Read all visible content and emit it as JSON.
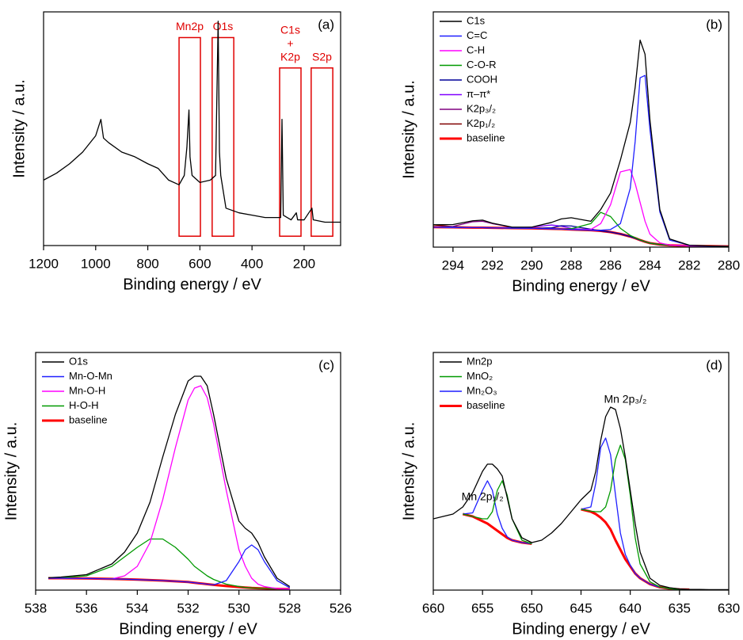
{
  "chart_data": [
    {
      "type": "line",
      "panel_label": "(a)",
      "xlabel": "Binding energy / eV",
      "ylabel": "Intensity / a.u.",
      "xlim": [
        1200,
        60
      ],
      "xticks": [
        1200,
        1000,
        800,
        600,
        400,
        200
      ],
      "ylim": [
        0,
        100
      ],
      "color": "#000000",
      "x": [
        1200,
        1150,
        1100,
        1050,
        1000,
        980,
        970,
        950,
        900,
        850,
        800,
        760,
        720,
        680,
        660,
        650,
        642,
        638,
        630,
        600,
        560,
        540,
        530,
        525,
        520,
        500,
        450,
        400,
        350,
        300,
        290,
        285,
        280,
        250,
        230,
        225,
        200,
        170,
        165,
        120,
        60
      ],
      "values": [
        28,
        31,
        35,
        40,
        47,
        54,
        46,
        44,
        40,
        38,
        35,
        33,
        28,
        26,
        30,
        42,
        58,
        38,
        30,
        27,
        28,
        30,
        96,
        40,
        30,
        16,
        14,
        13,
        12,
        12,
        12,
        54,
        13,
        11,
        14,
        11,
        11,
        16,
        11,
        10,
        10
      ],
      "regions": [
        {
          "label": [
            "Mn2p"
          ],
          "x": [
            680,
            598
          ],
          "y": [
            4,
            89
          ],
          "color": "#e00000"
        },
        {
          "label": [
            "O1s"
          ],
          "x": [
            553,
            470
          ],
          "y": [
            4,
            89
          ],
          "color": "#e00000"
        },
        {
          "label": [
            "C1s",
            "+",
            "K2p"
          ],
          "x": [
            294,
            212
          ],
          "y": [
            4,
            76
          ],
          "color": "#e00000"
        },
        {
          "label": [
            "S2p"
          ],
          "x": [
            173,
            90
          ],
          "y": [
            4,
            76
          ],
          "color": "#e00000"
        }
      ]
    },
    {
      "type": "line",
      "panel_label": "(b)",
      "xlabel": "Binding energy / eV",
      "ylabel": "Intensity / a.u.",
      "xlim": [
        295,
        280
      ],
      "xticks": [
        294,
        292,
        290,
        288,
        286,
        284,
        282,
        280
      ],
      "ylim": [
        0,
        100
      ],
      "legend": "upper left",
      "x": [
        295,
        294,
        293,
        292.5,
        292,
        291,
        290,
        289,
        288.5,
        288,
        287,
        286.5,
        286,
        285.5,
        285,
        284.75,
        284.5,
        284.25,
        284,
        283.5,
        283,
        282,
        281,
        280
      ],
      "series": [
        {
          "name": "C1s",
          "color": "#000000",
          "values": [
            9.5,
            9.6,
            11.2,
            11.5,
            10.2,
            8.5,
            8.5,
            10.5,
            12,
            12.5,
            11,
            16,
            23,
            37,
            53,
            68,
            88,
            82,
            54,
            16,
            3.5,
            0.8,
            0.5,
            0.3
          ]
        },
        {
          "name": "C=C",
          "color": "#1f1fff",
          "values": [
            8.5,
            8.4,
            8.3,
            8.3,
            8.2,
            8.1,
            8,
            7.8,
            7.7,
            7.5,
            7.2,
            7.2,
            7.5,
            10,
            25,
            45,
            72,
            73,
            50,
            15,
            3,
            0.8,
            0.4,
            0.3
          ]
        },
        {
          "name": "C-H",
          "color": "#ff00ff",
          "values": [
            8.5,
            8.4,
            8.3,
            8.3,
            8.2,
            8.1,
            8,
            7.8,
            7.7,
            7.5,
            7.5,
            10,
            18,
            32,
            33,
            27,
            19,
            11,
            5.5,
            1.8,
            0.9,
            0.5,
            0.4,
            0.3
          ]
        },
        {
          "name": "C-O-R",
          "color": "#009900",
          "values": [
            8.5,
            8.4,
            8.3,
            8.3,
            8.2,
            8.1,
            8,
            7.8,
            7.7,
            7.8,
            10,
            14.8,
            13,
            8,
            5,
            4,
            3.1,
            2.3,
            1.7,
            1.1,
            0.8,
            0.5,
            0.4,
            0.3
          ]
        },
        {
          "name": "COOH",
          "color": "#000099",
          "values": [
            8.5,
            8.4,
            8.3,
            8.3,
            8.2,
            8.1,
            8,
            8.2,
            9.1,
            9,
            7.6,
            6.9,
            6.4,
            5.6,
            4.5,
            3.8,
            3,
            2.3,
            1.7,
            1.1,
            0.8,
            0.5,
            0.4,
            0.3
          ]
        },
        {
          "name": "π–π*",
          "color": "#8000ff",
          "values": [
            8.5,
            8.4,
            8.3,
            8.3,
            8.2,
            8.1,
            8.5,
            9.4,
            8.9,
            8,
            7.2,
            6.9,
            6.4,
            5.6,
            4.5,
            3.8,
            3,
            2.3,
            1.7,
            1.1,
            0.8,
            0.5,
            0.4,
            0.3
          ]
        },
        {
          "name": "K2p₃/₂",
          "color": "#800080",
          "values": [
            8.5,
            8.8,
            10.8,
            11,
            10,
            8.4,
            8,
            7.8,
            7.7,
            7.5,
            7.2,
            6.9,
            6.4,
            5.6,
            4.5,
            3.8,
            3,
            2.3,
            1.7,
            1.1,
            0.8,
            0.5,
            0.4,
            0.3
          ]
        },
        {
          "name": "K2p₁/₂",
          "color": "#800000",
          "values": [
            9.5,
            8.7,
            8.3,
            8.3,
            8.2,
            8.1,
            8,
            7.8,
            7.7,
            7.5,
            7.2,
            6.9,
            6.4,
            5.6,
            4.5,
            3.8,
            3,
            2.3,
            1.7,
            1.1,
            0.8,
            0.5,
            0.4,
            0.3
          ]
        },
        {
          "name": "baseline",
          "color": "#ff0000",
          "linewidth": 3,
          "values": [
            8.5,
            8.4,
            8.3,
            8.3,
            8.2,
            8.1,
            8,
            7.8,
            7.7,
            7.5,
            7.2,
            6.9,
            6.4,
            5.6,
            4.5,
            3.8,
            3,
            2.3,
            1.7,
            1.1,
            0.8,
            0.5,
            0.4,
            0.3
          ]
        }
      ]
    },
    {
      "type": "line",
      "panel_label": "(c)",
      "xlabel": "Binding energy / eV",
      "ylabel": "Intensity / a.u.",
      "xlim": [
        538,
        526
      ],
      "xticks": [
        538,
        536,
        534,
        532,
        530,
        528,
        526
      ],
      "ylim": [
        0,
        100
      ],
      "legend": "upper left",
      "x": [
        537.5,
        537,
        536,
        535,
        534.5,
        534,
        533.5,
        533,
        532.5,
        532,
        531.75,
        531.5,
        531.25,
        531,
        530.5,
        530,
        529.75,
        529.5,
        529.25,
        529,
        528.5,
        528
      ],
      "series": [
        {
          "name": "O1s",
          "color": "#000000",
          "values": [
            5.2,
            5.5,
            6.5,
            11,
            16,
            24,
            37,
            56,
            74,
            88,
            90,
            90,
            86,
            74,
            47,
            29,
            26,
            24,
            20,
            14,
            5,
            1.5
          ]
        },
        {
          "name": "Mn-O-Mn",
          "color": "#1f1fff",
          "values": [
            5,
            5,
            4.9,
            4.7,
            4.6,
            4.4,
            4.2,
            4,
            3.7,
            3.4,
            3.1,
            2.8,
            2.5,
            2.2,
            4,
            12,
            17,
            19,
            17,
            12,
            4,
            1
          ]
        },
        {
          "name": "Mn-O-H",
          "color": "#ff00ff",
          "values": [
            5,
            5,
            4.9,
            4.7,
            6,
            10,
            20,
            38,
            60,
            80,
            85,
            86,
            81,
            70,
            42,
            17,
            10,
            5,
            2.5,
            1.5,
            0.6,
            0.4
          ]
        },
        {
          "name": "H-O-H",
          "color": "#009900",
          "values": [
            5,
            5.2,
            6,
            10,
            14,
            18,
            21.5,
            21.5,
            18,
            13,
            10,
            8,
            6,
            4.5,
            2.5,
            1.5,
            1.1,
            0.9,
            0.8,
            0.7,
            0.5,
            0.4
          ]
        },
        {
          "name": "baseline",
          "color": "#ff0000",
          "linewidth": 3,
          "values": [
            5,
            5,
            4.9,
            4.7,
            4.6,
            4.4,
            4.2,
            4,
            3.7,
            3.4,
            3.1,
            2.8,
            2.5,
            2.2,
            1.7,
            1.3,
            1.1,
            0.9,
            0.8,
            0.7,
            0.5,
            0.4
          ]
        }
      ]
    },
    {
      "type": "line",
      "panel_label": "(d)",
      "xlabel": "Binding energy / eV",
      "ylabel": "Intensity / a.u.",
      "xlim": [
        660,
        630
      ],
      "xticks": [
        660,
        655,
        650,
        645,
        640,
        635,
        630
      ],
      "ylim": [
        0,
        100
      ],
      "legend": "upper left",
      "x": [
        660,
        659,
        658,
        657,
        656,
        655,
        654.5,
        654,
        653.5,
        653,
        652.5,
        652,
        651,
        650,
        649,
        648,
        647,
        646,
        645,
        644,
        643.5,
        643,
        642.5,
        642,
        641.5,
        641,
        640.5,
        640,
        639.5,
        639,
        638,
        637,
        636,
        635,
        634,
        633,
        632,
        631,
        630
      ],
      "series": [
        {
          "name": "Mn2p",
          "color": "#000000",
          "values": [
            30,
            31,
            32,
            35,
            41,
            50,
            53,
            53,
            51,
            48,
            39,
            30,
            22,
            20,
            21,
            24,
            28,
            33,
            38,
            42,
            50,
            63,
            73,
            77,
            76,
            68,
            56,
            42,
            28,
            16,
            5,
            2,
            1,
            0.5,
            0.3,
            0.3,
            0.2,
            0.2,
            0.2
          ]
        },
        {
          "name": "MnO₂",
          "color": "#009900",
          "values": [
            null,
            null,
            null,
            32,
            31,
            30,
            30,
            33,
            42,
            46,
            40,
            30,
            21,
            19.5,
            null,
            null,
            null,
            null,
            34,
            33.2,
            33,
            33,
            35,
            42,
            55,
            61,
            55,
            40,
            22,
            11,
            3.5,
            1.3,
            0.6,
            0.3,
            0.2,
            null,
            null,
            null,
            null
          ]
        },
        {
          "name": "Mn₂O₃",
          "color": "#1f1fff",
          "values": [
            null,
            null,
            null,
            32,
            32.5,
            42,
            46,
            42,
            32,
            26,
            22.5,
            21,
            20,
            19.5,
            null,
            null,
            null,
            null,
            34,
            35,
            45,
            60,
            64,
            57,
            40,
            24,
            15,
            10.5,
            7,
            5,
            2.5,
            1.2,
            0.6,
            0.3,
            0.2,
            null,
            null,
            null,
            null
          ]
        },
        {
          "name": "baseline",
          "color": "#ff0000",
          "linewidth": 3,
          "values": [
            null,
            null,
            null,
            32,
            31,
            29,
            28,
            26.5,
            25,
            23.5,
            22,
            21,
            20,
            19.5,
            null,
            null,
            null,
            null,
            34,
            33,
            32,
            30.5,
            28.5,
            25.5,
            21,
            17,
            13,
            10,
            7,
            5,
            2.5,
            1.2,
            0.6,
            0.3,
            0.2,
            null,
            null,
            null,
            null
          ]
        }
      ],
      "annotations": [
        {
          "text": "Mn 2p₁/₂",
          "x": 655,
          "y": 39
        },
        {
          "text": "Mn 2p₃/₂",
          "x": 640.5,
          "y": 80
        }
      ]
    }
  ]
}
